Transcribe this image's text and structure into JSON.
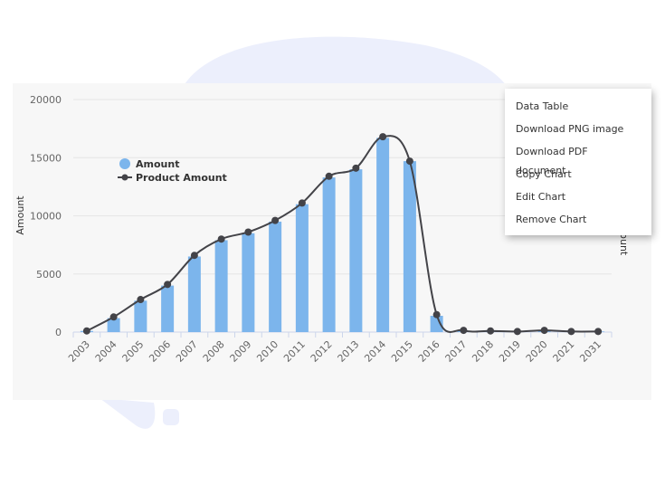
{
  "chart_data": {
    "type": "bar",
    "ylabel": "Amount",
    "y2label": "Product Amount",
    "categories": [
      "2003",
      "2004",
      "2005",
      "2006",
      "2007",
      "2008",
      "2009",
      "2010",
      "2011",
      "2012",
      "2013",
      "2014",
      "2015",
      "2016",
      "2017",
      "2018",
      "2019",
      "2020",
      "2021",
      "2031"
    ],
    "series": [
      {
        "name": "Amount",
        "type": "bar",
        "color": "#7cb5ec",
        "values": [
          100,
          1200,
          2700,
          4000,
          6500,
          7900,
          8500,
          9500,
          11000,
          13300,
          14000,
          16700,
          14700,
          1400,
          100,
          100,
          50,
          150,
          50,
          50
        ]
      },
      {
        "name": "Product Amount",
        "type": "line",
        "color": "#434348",
        "values": [
          100,
          1300,
          2800,
          4100,
          6600,
          8000,
          8600,
          9600,
          11100,
          13400,
          14100,
          16800,
          14700,
          1500,
          150,
          100,
          50,
          150,
          50,
          50
        ]
      }
    ],
    "ylim": [
      0,
      20000
    ],
    "yticks": [
      0,
      5000,
      10000,
      15000,
      20000
    ],
    "grid": true,
    "legend": "top-left"
  },
  "menu": {
    "items": [
      "Data Table",
      "Download PNG image",
      "Download PDF document",
      "Copy Chart",
      "Edit Chart",
      "Remove Chart"
    ]
  }
}
